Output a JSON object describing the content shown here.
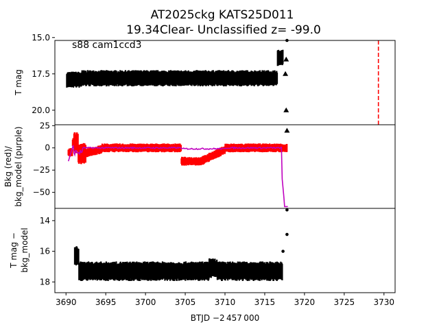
{
  "figure": {
    "title_line1": "AT2025ckg  KATS25D011",
    "title_line2": "19.34Clear- Unclassified z= -99.0",
    "annotation": "s88 cam1ccd3",
    "xlabel": "BTJD −2 457 000",
    "x_ticks": [
      3690,
      3695,
      3700,
      3705,
      3710,
      3715,
      3720,
      3725,
      3730
    ],
    "xlim": [
      3688.6,
      3731.4
    ]
  },
  "chart_data": [
    {
      "type": "scatter",
      "panel": "top",
      "ylabel": "T mag",
      "ylim": [
        21.0,
        15.2
      ],
      "y_inverted": true,
      "y_ticks": [
        15.0,
        17.5,
        20.0
      ],
      "y_tick_labels": [
        "15.0",
        "17.5",
        "20.0"
      ],
      "series": [
        {
          "color": "#000000",
          "marker": "point",
          "band": {
            "x_start": 3690.1,
            "x_end": 3717.3,
            "y_center": 17.8,
            "y_spread": 0.7
          }
        },
        {
          "color": "#000000",
          "marker": "triangle-up",
          "points": [
            [
              3717.6,
              17.5
            ],
            [
              3717.7,
              20.0
            ],
            [
              3717.8,
              21.4
            ],
            [
              3717.7,
              16.5
            ]
          ]
        }
      ],
      "single_points": [
        [
          3717.8,
          15.2
        ]
      ],
      "vline": {
        "x": 3729.3,
        "color": "#ff0000",
        "style": "dashed"
      }
    },
    {
      "type": "scatter",
      "panel": "middle",
      "ylabel_line1": "Bkg (red)/",
      "ylabel_line2": "bkg_model (purple)",
      "ylim": [
        -68,
        26
      ],
      "y_ticks": [
        25,
        0,
        -25,
        -50
      ],
      "y_tick_labels": [
        "25",
        "0",
        "−25",
        "−50"
      ],
      "series": [
        {
          "color": "#ff0000",
          "marker": "point"
        },
        {
          "color": "#bf00bf",
          "marker": "line"
        }
      ]
    },
    {
      "type": "scatter",
      "panel": "bottom",
      "ylabel_line1": "T mag −",
      "ylabel_line2": "bkg_model",
      "ylim": [
        18.7,
        13.2
      ],
      "y_inverted": true,
      "y_ticks": [
        14,
        16,
        18
      ],
      "y_tick_labels": [
        "14",
        "16",
        "18"
      ],
      "series": [
        {
          "color": "#000000",
          "marker": "point",
          "band": {
            "x_start": 3691.1,
            "x_end": 3717.2,
            "y_center": 17.3,
            "y_spread": 0.8
          }
        }
      ],
      "single_points": [
        [
          3717.8,
          13.3
        ],
        [
          3717.8,
          14.9
        ],
        [
          3717.3,
          16.0
        ]
      ]
    }
  ]
}
